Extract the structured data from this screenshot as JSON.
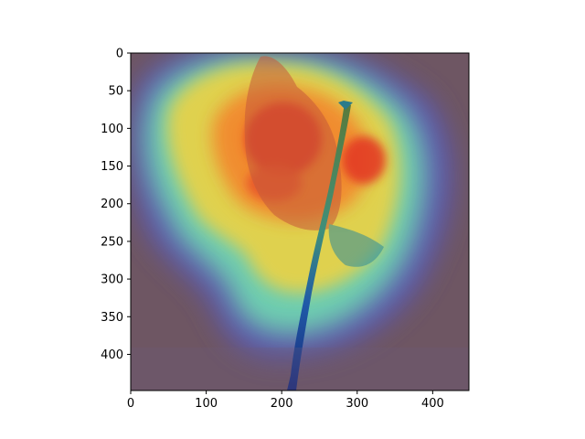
{
  "figure": {
    "subject": "bird-on-branch",
    "overlay": "attention-heatmap",
    "colormap": "jet",
    "background_color": "#ffffff",
    "axes_color": "#000000",
    "image_size_data_units": [
      448,
      448
    ]
  },
  "axes": {
    "x": {
      "min": 0,
      "max": 448,
      "ticks": [
        0,
        100,
        200,
        300,
        400
      ],
      "labels": [
        "0",
        "100",
        "200",
        "300",
        "400"
      ]
    },
    "y": {
      "min": 0,
      "max": 448,
      "ticks": [
        0,
        50,
        100,
        150,
        200,
        250,
        300,
        350,
        400
      ],
      "labels": [
        "0",
        "50",
        "100",
        "150",
        "200",
        "250",
        "300",
        "350",
        "400"
      ]
    }
  }
}
